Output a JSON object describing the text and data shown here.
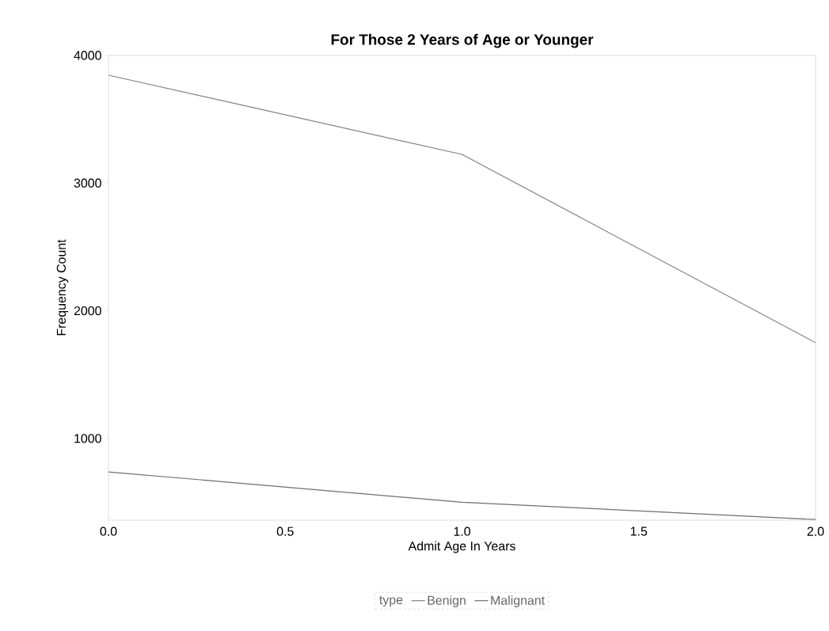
{
  "chart_data": {
    "type": "line",
    "title": "For Those 2 Years of Age or Younger",
    "xlabel": "Admit Age In Years",
    "ylabel": "Frequency Count",
    "legend_title": "type",
    "x": [
      0,
      1,
      2
    ],
    "series": [
      {
        "name": "Benign",
        "color": "#808080",
        "values": [
          3845,
          3225,
          1750
        ]
      },
      {
        "name": "Malignant",
        "color": "#6e6e6e",
        "values": [
          738,
          500,
          365
        ]
      }
    ],
    "xlim": [
      0,
      2
    ],
    "xticks": [
      {
        "value": 0,
        "label": "0.0"
      },
      {
        "value": 0.5,
        "label": "0.5"
      },
      {
        "value": 1,
        "label": "1.0"
      },
      {
        "value": 1.5,
        "label": "1.5"
      },
      {
        "value": 2,
        "label": "2.0"
      }
    ],
    "ylim": [
      360,
      4000
    ],
    "yticks": [
      1000,
      2000,
      3000,
      4000
    ],
    "legend": "bottom",
    "grid": false,
    "marker": "none",
    "line_style": "solid"
  }
}
